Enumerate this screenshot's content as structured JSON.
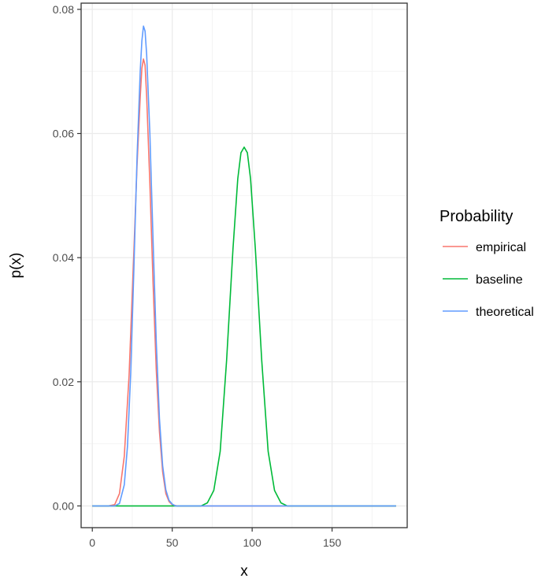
{
  "chart_data": {
    "type": "line",
    "xlabel": "x",
    "ylabel": "p(x)",
    "xlim": [
      -7,
      197
    ],
    "ylim": [
      -0.0035,
      0.081
    ],
    "x_ticks": [
      0,
      50,
      100,
      150
    ],
    "x_tick_labels": [
      "0",
      "50",
      "100",
      "150"
    ],
    "x_minor_ticks": [
      25,
      75,
      125,
      175
    ],
    "y_ticks": [
      0.0,
      0.02,
      0.04,
      0.06,
      0.08
    ],
    "y_tick_labels": [
      "0.00",
      "0.02",
      "0.04",
      "0.06",
      "0.08"
    ],
    "y_minor_ticks": [
      0.01,
      0.03,
      0.05,
      0.07
    ],
    "grid": true,
    "legend": {
      "title": "Probability",
      "placement": "right"
    },
    "series": [
      {
        "name": "empirical",
        "color": "#F8766D",
        "points": [
          [
            0,
            0
          ],
          [
            10,
            0
          ],
          [
            14,
            0.0002
          ],
          [
            17,
            0.002
          ],
          [
            20,
            0.008
          ],
          [
            23,
            0.021
          ],
          [
            26,
            0.041
          ],
          [
            28,
            0.055
          ],
          [
            30,
            0.066
          ],
          [
            31,
            0.0705
          ],
          [
            32,
            0.072
          ],
          [
            33,
            0.071
          ],
          [
            34,
            0.066
          ],
          [
            36,
            0.052
          ],
          [
            38,
            0.036
          ],
          [
            40,
            0.022
          ],
          [
            42,
            0.012
          ],
          [
            44,
            0.0055
          ],
          [
            46,
            0.002
          ],
          [
            48,
            0.0007
          ],
          [
            50,
            0.0002
          ],
          [
            53,
            0
          ],
          [
            190,
            0
          ]
        ]
      },
      {
        "name": "baseline",
        "color": "#00BA38",
        "points": [
          [
            0,
            0
          ],
          [
            68,
            0
          ],
          [
            72,
            0.0005
          ],
          [
            76,
            0.0025
          ],
          [
            80,
            0.0088
          ],
          [
            84,
            0.0234
          ],
          [
            88,
            0.0414
          ],
          [
            91,
            0.0527
          ],
          [
            93,
            0.0569
          ],
          [
            95,
            0.0578
          ],
          [
            97,
            0.0569
          ],
          [
            99,
            0.0527
          ],
          [
            102,
            0.0414
          ],
          [
            106,
            0.0234
          ],
          [
            110,
            0.0088
          ],
          [
            114,
            0.0025
          ],
          [
            118,
            0.0005
          ],
          [
            122,
            0
          ],
          [
            190,
            0
          ]
        ]
      },
      {
        "name": "theoretical",
        "color": "#619CFF",
        "points": [
          [
            0,
            0
          ],
          [
            14,
            0
          ],
          [
            17,
            0.0004
          ],
          [
            20,
            0.0034
          ],
          [
            22,
            0.0096
          ],
          [
            24,
            0.0212
          ],
          [
            26,
            0.0381
          ],
          [
            28,
            0.0563
          ],
          [
            30,
            0.0702
          ],
          [
            31,
            0.0749
          ],
          [
            32,
            0.0773
          ],
          [
            33,
            0.0765
          ],
          [
            34,
            0.0727
          ],
          [
            36,
            0.0601
          ],
          [
            38,
            0.0429
          ],
          [
            40,
            0.0265
          ],
          [
            42,
            0.0141
          ],
          [
            44,
            0.0065
          ],
          [
            46,
            0.0026
          ],
          [
            48,
            0.0009
          ],
          [
            50,
            0.0003
          ],
          [
            52,
            0
          ],
          [
            190,
            0
          ]
        ]
      }
    ]
  }
}
